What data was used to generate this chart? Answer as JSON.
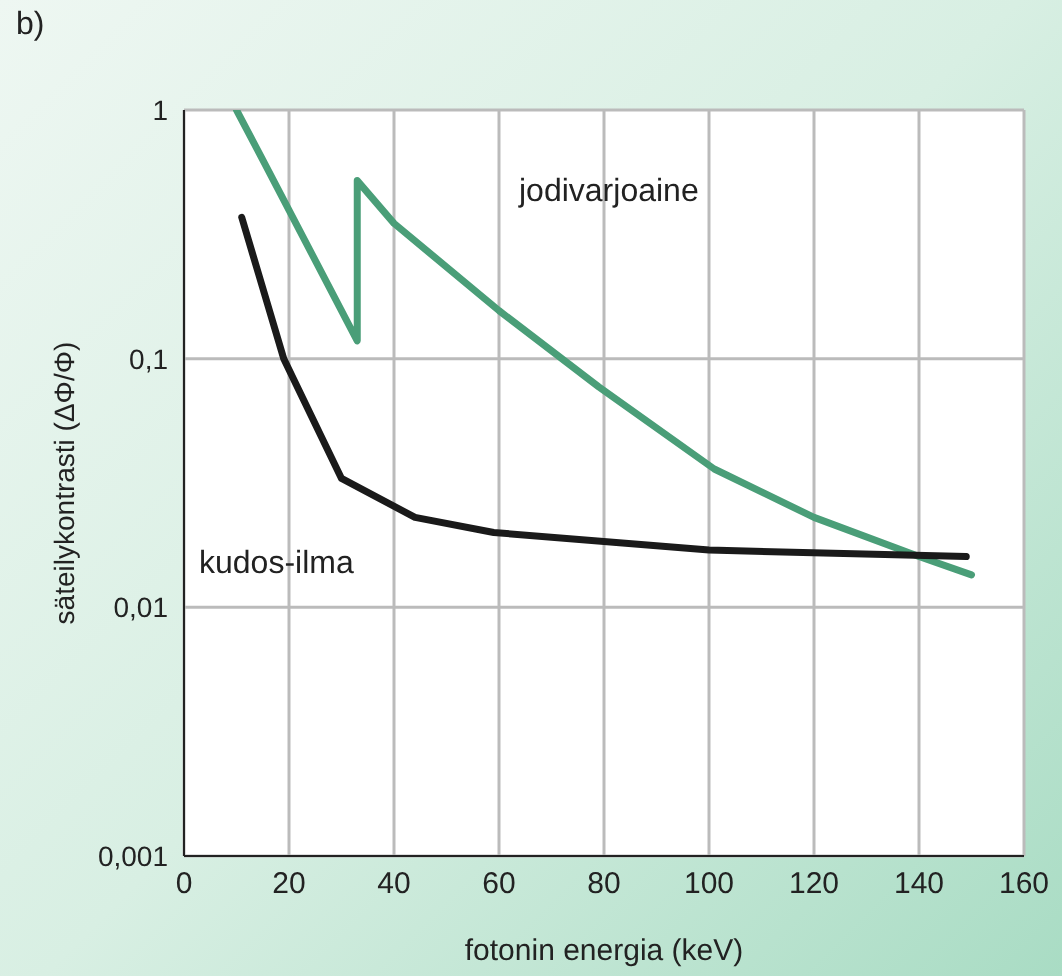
{
  "chart_data": {
    "type": "line",
    "title": "b)",
    "xlabel": "fotonin energia (keV)",
    "ylabel": "säteilykontrasti (ΔΦ/Φ)",
    "log": "y",
    "grid": true,
    "legend": false,
    "line_style": "solid",
    "marker": "none",
    "xlim": [
      0,
      160
    ],
    "xticks": [
      0,
      20,
      40,
      60,
      80,
      100,
      120,
      140,
      160
    ],
    "ylim": [
      0.001,
      1
    ],
    "yticks": [
      {
        "value": 0.001,
        "label": "0,001"
      },
      {
        "value": 0.01,
        "label": "0,01"
      },
      {
        "value": 0.1,
        "label": "0,1"
      },
      {
        "value": 1,
        "label": "1"
      }
    ],
    "series": [
      {
        "name": "jodivarjoaine",
        "color": "#4a9e78",
        "x": [
          10,
          15,
          33,
          33,
          40,
          60,
          79,
          101,
          120,
          140,
          150
        ],
        "values": [
          1.0,
          0.63,
          0.118,
          0.52,
          0.35,
          0.156,
          0.077,
          0.036,
          0.023,
          0.016,
          0.0135
        ]
      },
      {
        "name": "kudos-ilma",
        "color": "#1a1a1a",
        "x": [
          11,
          19,
          30,
          44,
          59,
          100,
          149
        ],
        "values": [
          0.37,
          0.1,
          0.033,
          0.023,
          0.02,
          0.017,
          0.016
        ]
      }
    ]
  }
}
